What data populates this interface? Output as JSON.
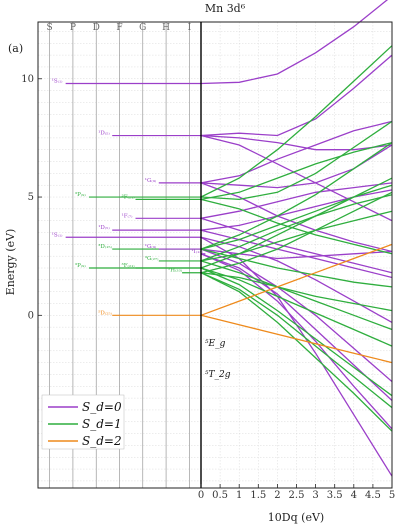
{
  "chart_data": {
    "type": "line",
    "title": "Mn 3d⁶",
    "panel_label": "(a)",
    "ylabel": "Energy (eV)",
    "xlabel": "10Dq (eV)",
    "ylim": [
      -7.3,
      12.4
    ],
    "yticks": [
      0,
      5,
      10
    ],
    "xlim": [
      0,
      5
    ],
    "xticks": [
      0,
      0.5,
      1,
      1.5,
      2,
      2.5,
      3,
      3.5,
      4,
      4.5,
      5
    ],
    "xtick_labels": [
      "0",
      "0.5",
      "1",
      "1.5",
      "2",
      "2.5",
      "3",
      "3.5",
      "4",
      "4.5",
      "5"
    ],
    "term_columns": [
      "S",
      "P",
      "D",
      "F",
      "G",
      "H",
      "I"
    ],
    "legend": {
      "position": "bottom-left",
      "entries": [
        {
          "label": "S_d=0",
          "color": "#9b3fc9"
        },
        {
          "label": "S_d=1",
          "color": "#2fae3e"
        },
        {
          "label": "S_d=2",
          "color": "#ee8a1c"
        }
      ]
    },
    "colors": {
      "S0": "#9b3fc9",
      "S1": "#2fae3e",
      "S2": "#ee8a1c"
    },
    "terms": [
      {
        "label": "¹S₍₁₎",
        "col": 0,
        "energy": 9.8,
        "spin": "S0"
      },
      {
        "label": "¹D₍₅₎",
        "col": 2,
        "energy": 7.6,
        "spin": "S0"
      },
      {
        "label": "¹G₍₉₎",
        "col": 4,
        "energy": 5.6,
        "spin": "S0"
      },
      {
        "label": "³P₍₉₎",
        "col": 1,
        "energy": 5.0,
        "spin": "S1"
      },
      {
        "label": "³F₍₂₁₎",
        "col": 3,
        "energy": 4.9,
        "spin": "S1"
      },
      {
        "label": "¹F₍₇₎",
        "col": 3,
        "energy": 4.1,
        "spin": "S0"
      },
      {
        "label": "¹D₍₅₎",
        "col": 2,
        "energy": 3.6,
        "spin": "S0"
      },
      {
        "label": "¹S₍₁₎",
        "col": 0,
        "energy": 3.3,
        "spin": "S0"
      },
      {
        "label": "³D₍₁₅₎",
        "col": 2,
        "energy": 2.8,
        "spin": "S1"
      },
      {
        "label": "¹G₍₉₎",
        "col": 4,
        "energy": 2.8,
        "spin": "S0"
      },
      {
        "label": "¹I₍₁₃₎",
        "col": 6,
        "energy": 2.6,
        "spin": "S0"
      },
      {
        "label": "³G₍₂₇₎",
        "col": 4,
        "energy": 2.3,
        "spin": "S1"
      },
      {
        "label": "³P₍₉₎",
        "col": 1,
        "energy": 2.0,
        "spin": "S1"
      },
      {
        "label": "³F₍₂₁₎",
        "col": 3,
        "energy": 2.0,
        "spin": "S1"
      },
      {
        "label": "³H₍₃₃₎",
        "col": 5,
        "energy": 1.8,
        "spin": "S1"
      },
      {
        "label": "⁵D₍₂₅₎",
        "col": 2,
        "energy": 0.0,
        "spin": "S2"
      }
    ],
    "state_labels": [
      {
        "text": "⁵E_g",
        "x": 0.05,
        "y": -1.3
      },
      {
        "text": "⁵T_2g",
        "x": 0.05,
        "y": -2.6
      }
    ],
    "series": [
      {
        "spin": "S0",
        "x": [
          0,
          1,
          2,
          3,
          4,
          5
        ],
        "y": [
          9.8,
          9.85,
          10.2,
          11.1,
          12.2,
          13.5
        ]
      },
      {
        "spin": "S0",
        "x": [
          0,
          1,
          2,
          3,
          4,
          5
        ],
        "y": [
          7.6,
          7.7,
          7.6,
          8.3,
          9.6,
          11.0
        ]
      },
      {
        "spin": "S0",
        "x": [
          0,
          1,
          2,
          3,
          4,
          5
        ],
        "y": [
          7.6,
          7.5,
          7.3,
          7.0,
          7.0,
          7.2
        ]
      },
      {
        "spin": "S0",
        "x": [
          0,
          1,
          2,
          3,
          4,
          5
        ],
        "y": [
          7.6,
          7.2,
          6.4,
          5.6,
          4.8,
          4.0
        ]
      },
      {
        "spin": "S0",
        "x": [
          0,
          1,
          2,
          3,
          4,
          5
        ],
        "y": [
          5.6,
          5.9,
          6.6,
          7.2,
          7.8,
          8.2
        ]
      },
      {
        "spin": "S0",
        "x": [
          0,
          1,
          2,
          3,
          4,
          5
        ],
        "y": [
          5.6,
          5.5,
          5.4,
          5.6,
          6.2,
          7.2
        ]
      },
      {
        "spin": "S0",
        "x": [
          0,
          1,
          2,
          3,
          4,
          5
        ],
        "y": [
          5.6,
          5.0,
          4.2,
          3.6,
          3.1,
          2.7
        ]
      },
      {
        "spin": "S0",
        "x": [
          0,
          1,
          2,
          3,
          4,
          5
        ],
        "y": [
          4.1,
          4.4,
          4.8,
          5.2,
          5.4,
          5.6
        ]
      },
      {
        "spin": "S0",
        "x": [
          0,
          1,
          2,
          3,
          4,
          5
        ],
        "y": [
          4.1,
          3.6,
          3.0,
          2.6,
          2.2,
          1.8
        ]
      },
      {
        "spin": "S0",
        "x": [
          0,
          1,
          2,
          3,
          4,
          5
        ],
        "y": [
          3.6,
          3.8,
          4.2,
          4.6,
          5.0,
          5.3
        ]
      },
      {
        "spin": "S0",
        "x": [
          0,
          1,
          2,
          3,
          4,
          5
        ],
        "y": [
          3.6,
          3.2,
          2.8,
          2.4,
          2.0,
          1.6
        ]
      },
      {
        "spin": "S0",
        "x": [
          0,
          1,
          2,
          3,
          4,
          5
        ],
        "y": [
          3.3,
          2.9,
          2.3,
          1.5,
          0.6,
          -0.3
        ]
      },
      {
        "spin": "S0",
        "x": [
          0,
          1,
          2,
          3,
          4,
          5
        ],
        "y": [
          2.8,
          2.6,
          2.4,
          2.5,
          2.6,
          2.7
        ]
      },
      {
        "spin": "S0",
        "x": [
          0,
          1,
          2,
          3,
          4,
          5
        ],
        "y": [
          2.8,
          2.2,
          1.2,
          0.0,
          -1.4,
          -2.8
        ]
      },
      {
        "spin": "S0",
        "x": [
          0,
          1,
          2,
          3,
          4,
          5
        ],
        "y": [
          2.6,
          2.0,
          0.9,
          -0.6,
          -2.1,
          -3.6
        ]
      },
      {
        "spin": "S0",
        "x": [
          0,
          1,
          2,
          3,
          4,
          5
        ],
        "y": [
          2.6,
          1.9,
          0.6,
          -1.1,
          -3.0,
          -4.8
        ]
      },
      {
        "spin": "S0",
        "x": [
          0,
          1,
          2,
          3,
          4,
          5
        ],
        "y": [
          3.3,
          2.4,
          0.8,
          -1.6,
          -4.2,
          -6.8
        ]
      },
      {
        "spin": "S1",
        "x": [
          0,
          1,
          2,
          3,
          4,
          5
        ],
        "y": [
          5.0,
          5.8,
          7.0,
          8.4,
          9.9,
          11.4
        ]
      },
      {
        "spin": "S1",
        "x": [
          0,
          1,
          2,
          3,
          4,
          5
        ],
        "y": [
          5.0,
          4.9,
          5.2,
          6.0,
          7.1,
          8.2
        ]
      },
      {
        "spin": "S1",
        "x": [
          0,
          1,
          2,
          3,
          4,
          5
        ],
        "y": [
          4.9,
          5.2,
          5.8,
          6.4,
          6.9,
          7.3
        ]
      },
      {
        "spin": "S1",
        "x": [
          0,
          1,
          2,
          3,
          4,
          5
        ],
        "y": [
          4.9,
          4.5,
          3.9,
          3.4,
          3.0,
          2.6
        ]
      },
      {
        "spin": "S1",
        "x": [
          0,
          1,
          2,
          3,
          4,
          5
        ],
        "y": [
          2.8,
          3.4,
          4.2,
          5.1,
          6.2,
          7.3
        ]
      },
      {
        "spin": "S1",
        "x": [
          0,
          1,
          2,
          3,
          4,
          5
        ],
        "y": [
          2.8,
          3.2,
          3.8,
          4.4,
          5.0,
          5.5
        ]
      },
      {
        "spin": "S1",
        "x": [
          0,
          1,
          2,
          3,
          4,
          5
        ],
        "y": [
          2.8,
          2.4,
          2.0,
          1.7,
          1.4,
          1.2
        ]
      },
      {
        "spin": "S1",
        "x": [
          0,
          1,
          2,
          3,
          4,
          5
        ],
        "y": [
          2.3,
          2.9,
          3.6,
          4.2,
          4.7,
          5.1
        ]
      },
      {
        "spin": "S1",
        "x": [
          0,
          1,
          2,
          3,
          4,
          5
        ],
        "y": [
          2.3,
          2.6,
          3.1,
          3.6,
          4.0,
          4.4
        ]
      },
      {
        "spin": "S1",
        "x": [
          0,
          1,
          2,
          3,
          4,
          5
        ],
        "y": [
          2.3,
          1.8,
          1.2,
          0.6,
          0.0,
          -0.6
        ]
      },
      {
        "spin": "S1",
        "x": [
          0,
          1,
          2,
          3,
          4,
          5
        ],
        "y": [
          2.0,
          2.6,
          3.4,
          4.2,
          5.0,
          5.8
        ]
      },
      {
        "spin": "S1",
        "x": [
          0,
          1,
          2,
          3,
          4,
          5
        ],
        "y": [
          2.0,
          1.5,
          0.8,
          0.1,
          -0.6,
          -1.3
        ]
      },
      {
        "spin": "S1",
        "x": [
          0,
          1,
          2,
          3,
          4,
          5
        ],
        "y": [
          2.0,
          1.3,
          0.2,
          -1.0,
          -2.2,
          -3.4
        ]
      },
      {
        "spin": "S1",
        "x": [
          0,
          1,
          2,
          3,
          4,
          5
        ],
        "y": [
          1.8,
          2.2,
          2.8,
          3.6,
          4.4,
          5.2
        ]
      },
      {
        "spin": "S1",
        "x": [
          0,
          1,
          2,
          3,
          4,
          5
        ],
        "y": [
          1.8,
          1.6,
          1.2,
          0.8,
          0.5,
          0.2
        ]
      },
      {
        "spin": "S1",
        "x": [
          0,
          1,
          2,
          3,
          4,
          5
        ],
        "y": [
          1.8,
          1.1,
          0.0,
          -1.3,
          -2.6,
          -3.9
        ]
      },
      {
        "spin": "S1",
        "x": [
          0,
          1,
          2,
          3,
          4,
          5
        ],
        "y": [
          1.8,
          1.0,
          -0.3,
          -1.8,
          -3.3,
          -4.9
        ]
      },
      {
        "spin": "S2",
        "x": [
          0,
          1,
          2,
          3,
          4,
          5
        ],
        "y": [
          0.0,
          0.6,
          1.2,
          1.8,
          2.4,
          3.0
        ]
      },
      {
        "spin": "S2",
        "x": [
          0,
          1,
          2,
          3,
          4,
          5
        ],
        "y": [
          0.0,
          -0.4,
          -0.8,
          -1.2,
          -1.6,
          -2.0
        ]
      }
    ]
  }
}
